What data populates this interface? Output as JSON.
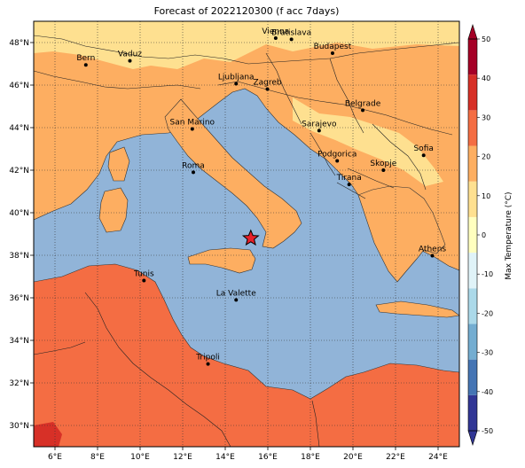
{
  "title": "Forecast of 2022120300 (f acc 7days)",
  "map": {
    "lon_range": [
      5,
      25
    ],
    "lat_range": [
      29,
      49
    ],
    "x_ticks": [
      {
        "value": 6,
        "label": "6°E"
      },
      {
        "value": 8,
        "label": "8°E"
      },
      {
        "value": 10,
        "label": "10°E"
      },
      {
        "value": 12,
        "label": "12°E"
      },
      {
        "value": 14,
        "label": "14°E"
      },
      {
        "value": 16,
        "label": "16°E"
      },
      {
        "value": 18,
        "label": "18°E"
      },
      {
        "value": 20,
        "label": "20°E"
      },
      {
        "value": 22,
        "label": "22°E"
      },
      {
        "value": 24,
        "label": "24°E"
      }
    ],
    "y_ticks": [
      {
        "value": 30,
        "label": "30°N"
      },
      {
        "value": 32,
        "label": "32°N"
      },
      {
        "value": 34,
        "label": "34°N"
      },
      {
        "value": 36,
        "label": "36°N"
      },
      {
        "value": 38,
        "label": "38°N"
      },
      {
        "value": 40,
        "label": "40°N"
      },
      {
        "value": 42,
        "label": "42°N"
      },
      {
        "value": 44,
        "label": "44°N"
      },
      {
        "value": 46,
        "label": "46°N"
      },
      {
        "value": 48,
        "label": "48°N"
      }
    ],
    "grid": true,
    "marker": {
      "type": "star",
      "lon": 15.2,
      "lat": 38.8,
      "color": "#e8202a"
    },
    "cities": [
      {
        "name": "Bern",
        "lon": 7.45,
        "lat": 46.95
      },
      {
        "name": "Vaduz",
        "lon": 9.52,
        "lat": 47.14
      },
      {
        "name": "Vienna",
        "lon": 16.37,
        "lat": 48.21
      },
      {
        "name": "Bratislava",
        "lon": 17.11,
        "lat": 48.15
      },
      {
        "name": "Budapest",
        "lon": 19.04,
        "lat": 47.5
      },
      {
        "name": "Ljubljana",
        "lon": 14.51,
        "lat": 46.06
      },
      {
        "name": "Zagreb",
        "lon": 15.98,
        "lat": 45.81
      },
      {
        "name": "Belgrade",
        "lon": 20.46,
        "lat": 44.82
      },
      {
        "name": "San Marino",
        "lon": 12.45,
        "lat": 43.94
      },
      {
        "name": "Sarajevo",
        "lon": 18.41,
        "lat": 43.86
      },
      {
        "name": "Sofia",
        "lon": 23.32,
        "lat": 42.7
      },
      {
        "name": "Podgorica",
        "lon": 19.26,
        "lat": 42.44
      },
      {
        "name": "Skopje",
        "lon": 21.43,
        "lat": 42.0
      },
      {
        "name": "Roma",
        "lon": 12.5,
        "lat": 41.9
      },
      {
        "name": "Tirana",
        "lon": 19.82,
        "lat": 41.33
      },
      {
        "name": "Athens",
        "lon": 23.73,
        "lat": 37.98
      },
      {
        "name": "Tunis",
        "lon": 10.18,
        "lat": 36.81
      },
      {
        "name": "La Valette",
        "lon": 14.51,
        "lat": 35.9
      },
      {
        "name": "Tripoli",
        "lon": 13.19,
        "lat": 32.89
      }
    ]
  },
  "colorbar": {
    "label": "Max Temperature (°C)",
    "ticks": [
      "-50",
      "-40",
      "-30",
      "-20",
      "-10",
      "0",
      "10",
      "20",
      "30",
      "40",
      "50"
    ],
    "colors": [
      "#313695",
      "#4575b4",
      "#74add1",
      "#abd9e9",
      "#e0f3f8",
      "#ffffbf",
      "#fee090",
      "#fdae61",
      "#f46d43",
      "#d73027",
      "#a50026"
    ]
  }
}
